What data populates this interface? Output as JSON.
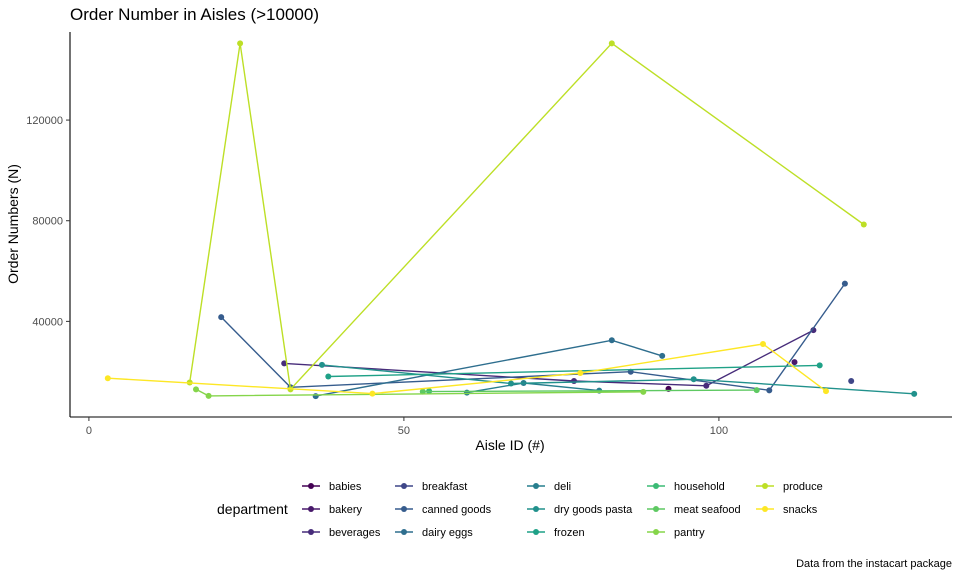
{
  "chart_data": {
    "type": "line",
    "title": "Order Number in Aisles (>10000)",
    "xlabel": "Aisle ID (#)",
    "ylabel": "Order Numbers (N)",
    "caption": "Data from the instacart package",
    "xlim": [
      -3,
      137
    ],
    "ylim": [
      2000,
      155000
    ],
    "xticks": [
      0,
      50,
      100
    ],
    "yticks": [
      40000,
      80000,
      120000
    ],
    "ytick_labels": [
      "40000",
      "80000",
      "120000"
    ],
    "grid": false,
    "legend": {
      "title": "department",
      "placement": "bottom",
      "ncol": 5
    },
    "series": [
      {
        "name": "babies",
        "color": "#440154",
        "points": [
          [
            92,
            13200
          ]
        ]
      },
      {
        "name": "bakery",
        "color": "#48196b",
        "points": [
          [
            112,
            23800
          ]
        ]
      },
      {
        "name": "beverages",
        "color": "#472c7a",
        "points": [
          [
            31,
            23300
          ],
          [
            77,
            16300
          ],
          [
            98,
            14400
          ],
          [
            115,
            36500
          ]
        ]
      },
      {
        "name": "breakfast",
        "color": "#3f4788",
        "points": [
          [
            121,
            16300
          ]
        ]
      },
      {
        "name": "canned goods",
        "color": "#365c8d",
        "points": [
          [
            21,
            41700
          ],
          [
            32,
            13800
          ],
          [
            86,
            20000
          ],
          [
            108,
            12600
          ],
          [
            120,
            55000
          ]
        ]
      },
      {
        "name": "dairy eggs",
        "color": "#2e6e8e",
        "points": [
          [
            36,
            10300
          ],
          [
            83,
            32500
          ],
          [
            91,
            26300
          ]
        ]
      },
      {
        "name": "deli",
        "color": "#277f8e",
        "points": [
          [
            60,
            11700
          ],
          [
            69,
            15500
          ],
          [
            81,
            12500
          ]
        ]
      },
      {
        "name": "dry goods pasta",
        "color": "#21918c",
        "points": [
          [
            37,
            22700
          ],
          [
            67,
            15300
          ],
          [
            96,
            17000
          ],
          [
            131,
            11200
          ]
        ]
      },
      {
        "name": "frozen",
        "color": "#1fa187",
        "points": [
          [
            38,
            18100
          ],
          [
            116,
            22500
          ]
        ]
      },
      {
        "name": "household",
        "color": "#3bbb75",
        "points": [
          [
            54,
            12300
          ]
        ]
      },
      {
        "name": "meat seafood",
        "color": "#5ec962",
        "points": [
          [
            53,
            12100
          ],
          [
            106,
            12700
          ]
        ]
      },
      {
        "name": "pantry",
        "color": "#85d54a",
        "points": [
          [
            17,
            13000
          ],
          [
            19,
            10400
          ],
          [
            88,
            12000
          ]
        ]
      },
      {
        "name": "produce",
        "color": "#bddf26",
        "points": [
          [
            16,
            15700
          ],
          [
            24,
            150500
          ],
          [
            32,
            13000
          ],
          [
            83,
            150500
          ],
          [
            123,
            78500
          ]
        ]
      },
      {
        "name": "snacks",
        "color": "#fde725",
        "points": [
          [
            3,
            17400
          ],
          [
            45,
            11300
          ],
          [
            78,
            19500
          ],
          [
            107,
            31000
          ],
          [
            117,
            12300
          ]
        ]
      }
    ]
  }
}
